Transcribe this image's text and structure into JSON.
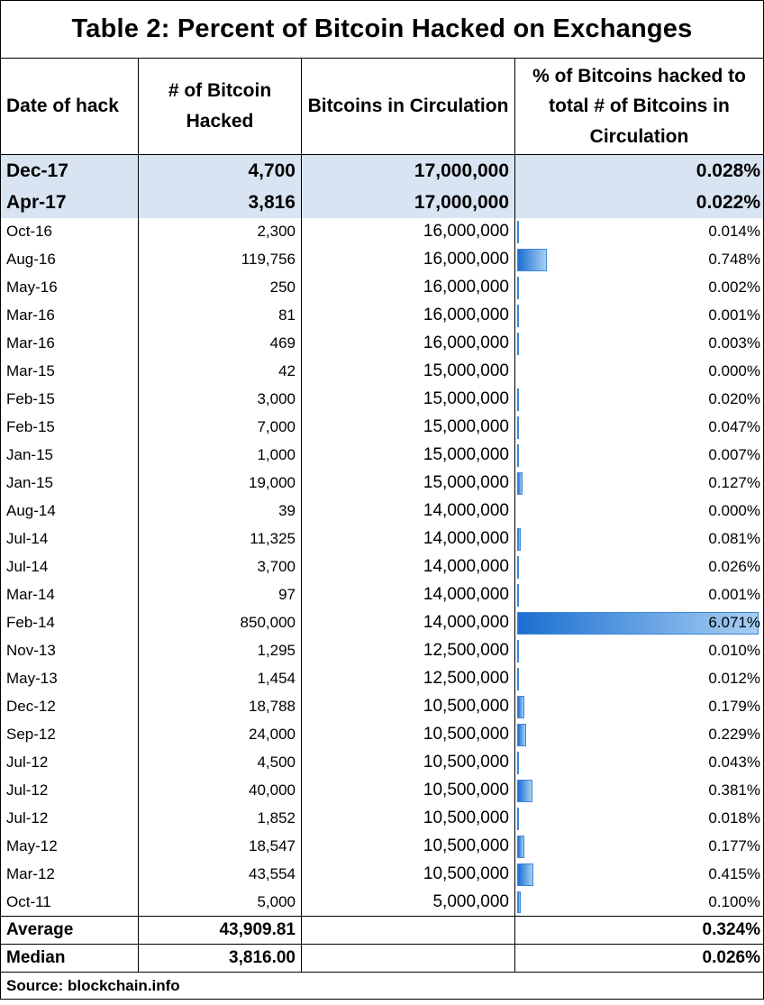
{
  "title": "Table 2: Percent of Bitcoin Hacked on Exchanges",
  "headers": {
    "date": "Date of hack",
    "hacked": "# of Bitcoin Hacked",
    "circulation": "Bitcoins in Circulation",
    "percent": "% of Bitcoins hacked to total # of Bitcoins in Circulation"
  },
  "bar_max_percent": 6.071,
  "bar_color": "#1a6fd1",
  "highlight_color": "#d9e4f2",
  "highlight_rows": [
    {
      "date": "Dec-17",
      "hacked": "4,700",
      "circulation": "17,000,000",
      "percent": "0.028%"
    },
    {
      "date": "Apr-17",
      "hacked": "3,816",
      "circulation": "17,000,000",
      "percent": "0.022%"
    }
  ],
  "rows": [
    {
      "date": "Oct-16",
      "hacked": "2,300",
      "circulation": "16,000,000",
      "percent": "0.014%",
      "value": 0.014
    },
    {
      "date": "Aug-16",
      "hacked": "119,756",
      "circulation": "16,000,000",
      "percent": "0.748%",
      "value": 0.748
    },
    {
      "date": "May-16",
      "hacked": "250",
      "circulation": "16,000,000",
      "percent": "0.002%",
      "value": 0.002
    },
    {
      "date": "Mar-16",
      "hacked": "81",
      "circulation": "16,000,000",
      "percent": "0.001%",
      "value": 0.001
    },
    {
      "date": "Mar-16",
      "hacked": "469",
      "circulation": "16,000,000",
      "percent": "0.003%",
      "value": 0.003
    },
    {
      "date": "Mar-15",
      "hacked": "42",
      "circulation": "15,000,000",
      "percent": "0.000%",
      "value": 0.0
    },
    {
      "date": "Feb-15",
      "hacked": "3,000",
      "circulation": "15,000,000",
      "percent": "0.020%",
      "value": 0.02
    },
    {
      "date": "Feb-15",
      "hacked": "7,000",
      "circulation": "15,000,000",
      "percent": "0.047%",
      "value": 0.047
    },
    {
      "date": "Jan-15",
      "hacked": "1,000",
      "circulation": "15,000,000",
      "percent": "0.007%",
      "value": 0.007
    },
    {
      "date": "Jan-15",
      "hacked": "19,000",
      "circulation": "15,000,000",
      "percent": "0.127%",
      "value": 0.127
    },
    {
      "date": "Aug-14",
      "hacked": "39",
      "circulation": "14,000,000",
      "percent": "0.000%",
      "value": 0.0
    },
    {
      "date": "Jul-14",
      "hacked": "11,325",
      "circulation": "14,000,000",
      "percent": "0.081%",
      "value": 0.081
    },
    {
      "date": "Jul-14",
      "hacked": "3,700",
      "circulation": "14,000,000",
      "percent": "0.026%",
      "value": 0.026
    },
    {
      "date": "Mar-14",
      "hacked": "97",
      "circulation": "14,000,000",
      "percent": "0.001%",
      "value": 0.001
    },
    {
      "date": "Feb-14",
      "hacked": "850,000",
      "circulation": "14,000,000",
      "percent": "6.071%",
      "value": 6.071
    },
    {
      "date": "Nov-13",
      "hacked": "1,295",
      "circulation": "12,500,000",
      "percent": "0.010%",
      "value": 0.01
    },
    {
      "date": "May-13",
      "hacked": "1,454",
      "circulation": "12,500,000",
      "percent": "0.012%",
      "value": 0.012
    },
    {
      "date": "Dec-12",
      "hacked": "18,788",
      "circulation": "10,500,000",
      "percent": "0.179%",
      "value": 0.179
    },
    {
      "date": "Sep-12",
      "hacked": "24,000",
      "circulation": "10,500,000",
      "percent": "0.229%",
      "value": 0.229
    },
    {
      "date": "Jul-12",
      "hacked": "4,500",
      "circulation": "10,500,000",
      "percent": "0.043%",
      "value": 0.043
    },
    {
      "date": "Jul-12",
      "hacked": "40,000",
      "circulation": "10,500,000",
      "percent": "0.381%",
      "value": 0.381
    },
    {
      "date": "Jul-12",
      "hacked": "1,852",
      "circulation": "10,500,000",
      "percent": "0.018%",
      "value": 0.018
    },
    {
      "date": "May-12",
      "hacked": "18,547",
      "circulation": "10,500,000",
      "percent": "0.177%",
      "value": 0.177
    },
    {
      "date": "Mar-12",
      "hacked": "43,554",
      "circulation": "10,500,000",
      "percent": "0.415%",
      "value": 0.415
    },
    {
      "date": "Oct-11",
      "hacked": "5,000",
      "circulation": "5,000,000",
      "percent": "0.100%",
      "value": 0.1
    }
  ],
  "summary": [
    {
      "label": "Average",
      "hacked": "43,909.81",
      "percent": "0.324%"
    },
    {
      "label": "Median",
      "hacked": "3,816.00",
      "percent": "0.026%"
    }
  ],
  "source": "Source: blockchain.info"
}
